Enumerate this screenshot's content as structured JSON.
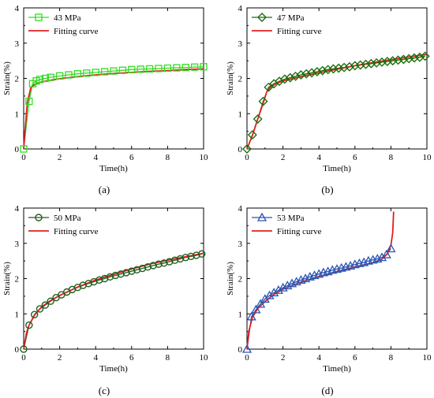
{
  "chart_data": [
    {
      "type": "line",
      "panel_label": "(a)",
      "xlabel": "Time(h)",
      "ylabel": "Strain(%)",
      "xlim": [
        0,
        10
      ],
      "ylim": [
        0,
        4
      ],
      "xticks": [
        "0",
        "2",
        "4",
        "6",
        "8",
        "10"
      ],
      "yticks": [
        "0",
        "1",
        "2",
        "3",
        "4"
      ],
      "legend_position": "top-left",
      "colors": {
        "experiment": "#33dd22",
        "fit": "#e02020"
      },
      "series": [
        {
          "name": "43 MPa",
          "marker": "square",
          "x": [
            0,
            0.3,
            0.5,
            0.7,
            0.9,
            1.2,
            1.5,
            2,
            2.5,
            3,
            3.5,
            4,
            4.5,
            5,
            5.5,
            6,
            6.5,
            7,
            7.5,
            8,
            8.5,
            9,
            9.5,
            10
          ],
          "y": [
            0,
            1.35,
            1.85,
            1.93,
            1.97,
            2.0,
            2.03,
            2.07,
            2.1,
            2.13,
            2.15,
            2.17,
            2.19,
            2.21,
            2.23,
            2.25,
            2.26,
            2.27,
            2.28,
            2.29,
            2.3,
            2.31,
            2.32,
            2.33
          ]
        },
        {
          "name": "Fitting curve",
          "x": [
            0,
            0.2,
            0.4,
            0.6,
            1,
            1.5,
            2,
            3,
            4,
            5,
            6,
            7,
            8,
            9,
            10
          ],
          "y": [
            0,
            1.3,
            1.75,
            1.82,
            1.9,
            1.95,
            1.99,
            2.05,
            2.1,
            2.14,
            2.17,
            2.2,
            2.22,
            2.25,
            2.27
          ]
        }
      ]
    },
    {
      "type": "line",
      "panel_label": "(b)",
      "xlabel": "Time(h)",
      "ylabel": "Strain(%)",
      "xlim": [
        0,
        10
      ],
      "ylim": [
        0,
        4
      ],
      "xticks": [
        "0",
        "2",
        "4",
        "6",
        "8",
        "10"
      ],
      "yticks": [
        "0",
        "1",
        "2",
        "3",
        "4"
      ],
      "legend_position": "top-left",
      "colors": {
        "experiment": "#1e6e0e",
        "fit": "#e02020"
      },
      "series": [
        {
          "name": "47 MPa",
          "marker": "diamond",
          "x": [
            0,
            0.3,
            0.6,
            0.9,
            1.2,
            1.5,
            1.8,
            2.1,
            2.4,
            2.7,
            3,
            3.3,
            3.6,
            3.9,
            4.2,
            4.5,
            4.8,
            5.1,
            5.4,
            5.7,
            6,
            6.3,
            6.6,
            6.9,
            7.2,
            7.5,
            7.8,
            8.1,
            8.4,
            8.7,
            9,
            9.3,
            9.6,
            9.9
          ],
          "y": [
            0,
            0.4,
            0.85,
            1.35,
            1.75,
            1.85,
            1.92,
            1.98,
            2.02,
            2.06,
            2.1,
            2.13,
            2.16,
            2.19,
            2.22,
            2.25,
            2.27,
            2.29,
            2.31,
            2.33,
            2.36,
            2.38,
            2.4,
            2.42,
            2.44,
            2.46,
            2.48,
            2.5,
            2.52,
            2.54,
            2.56,
            2.58,
            2.6,
            2.63
          ]
        },
        {
          "name": "Fitting curve",
          "x": [
            0,
            0.3,
            0.6,
            0.9,
            1.1,
            1.3,
            1.6,
            2,
            3,
            4,
            5,
            6,
            7,
            8,
            9,
            10
          ],
          "y": [
            0,
            0.38,
            0.85,
            1.3,
            1.62,
            1.75,
            1.85,
            1.93,
            2.05,
            2.16,
            2.26,
            2.36,
            2.45,
            2.53,
            2.61,
            2.68
          ]
        }
      ]
    },
    {
      "type": "line",
      "panel_label": "(c)",
      "xlabel": "Time(h)",
      "ylabel": "Strain(%)",
      "xlim": [
        0,
        10
      ],
      "ylim": [
        0,
        4
      ],
      "xticks": [
        "0",
        "2",
        "4",
        "6",
        "8",
        "10"
      ],
      "yticks": [
        "0",
        "1",
        "2",
        "3",
        "4"
      ],
      "legend_position": "top-left",
      "colors": {
        "experiment": "#1e5e1e",
        "fit": "#e02020"
      },
      "series": [
        {
          "name": "50 MPa",
          "marker": "circle",
          "x": [
            0,
            0.3,
            0.6,
            0.9,
            1.2,
            1.5,
            1.8,
            2.1,
            2.4,
            2.7,
            3,
            3.3,
            3.6,
            3.9,
            4.2,
            4.5,
            4.8,
            5.1,
            5.4,
            5.7,
            6,
            6.3,
            6.6,
            6.9,
            7.2,
            7.5,
            7.8,
            8.1,
            8.4,
            8.7,
            9,
            9.3,
            9.6,
            9.9
          ],
          "y": [
            0,
            0.68,
            0.98,
            1.14,
            1.25,
            1.36,
            1.46,
            1.54,
            1.62,
            1.69,
            1.75,
            1.81,
            1.86,
            1.91,
            1.96,
            2.0,
            2.05,
            2.09,
            2.13,
            2.17,
            2.21,
            2.25,
            2.29,
            2.33,
            2.37,
            2.41,
            2.44,
            2.48,
            2.52,
            2.56,
            2.6,
            2.63,
            2.66,
            2.7
          ]
        },
        {
          "name": "Fitting curve",
          "x": [
            0,
            0.15,
            0.3,
            0.6,
            1,
            1.5,
            2,
            3,
            4,
            5,
            6,
            7,
            8,
            9,
            10
          ],
          "y": [
            0,
            0.45,
            0.68,
            0.96,
            1.2,
            1.38,
            1.52,
            1.76,
            1.96,
            2.12,
            2.27,
            2.41,
            2.52,
            2.62,
            2.72
          ]
        }
      ]
    },
    {
      "type": "line",
      "panel_label": "(d)",
      "xlabel": "Time(h)",
      "ylabel": "Strain(%)",
      "xlim": [
        0,
        10
      ],
      "ylim": [
        0,
        4
      ],
      "xticks": [
        "0",
        "2",
        "4",
        "6",
        "8",
        "10"
      ],
      "yticks": [
        "0",
        "1",
        "2",
        "3",
        "4"
      ],
      "legend_position": "top-left",
      "colors": {
        "experiment": "#2a56b5",
        "fit": "#e02020"
      },
      "series": [
        {
          "name": "53 MPa",
          "marker": "triangle",
          "x": [
            0,
            0.25,
            0.5,
            0.75,
            1,
            1.25,
            1.5,
            1.75,
            2,
            2.25,
            2.5,
            2.75,
            3,
            3.25,
            3.5,
            3.75,
            4,
            4.25,
            4.5,
            4.75,
            5,
            5.25,
            5.5,
            5.75,
            6,
            6.25,
            6.5,
            6.75,
            7,
            7.25,
            7.5,
            7.75,
            8
          ],
          "y": [
            0,
            0.92,
            1.12,
            1.28,
            1.42,
            1.52,
            1.6,
            1.67,
            1.74,
            1.8,
            1.86,
            1.91,
            1.96,
            2.0,
            2.05,
            2.09,
            2.13,
            2.17,
            2.2,
            2.24,
            2.27,
            2.3,
            2.33,
            2.36,
            2.4,
            2.43,
            2.46,
            2.5,
            2.53,
            2.56,
            2.6,
            2.68,
            2.85
          ]
        },
        {
          "name": "Fitting curve",
          "x": [
            0,
            0.1,
            0.3,
            0.6,
            1,
            1.5,
            2,
            3,
            4,
            5,
            6,
            7,
            7.5,
            7.8,
            8,
            8.1,
            8.15
          ],
          "y": [
            0,
            0.5,
            0.9,
            1.15,
            1.35,
            1.55,
            1.7,
            1.9,
            2.06,
            2.2,
            2.33,
            2.45,
            2.55,
            2.7,
            2.95,
            3.3,
            3.9
          ]
        }
      ]
    }
  ]
}
